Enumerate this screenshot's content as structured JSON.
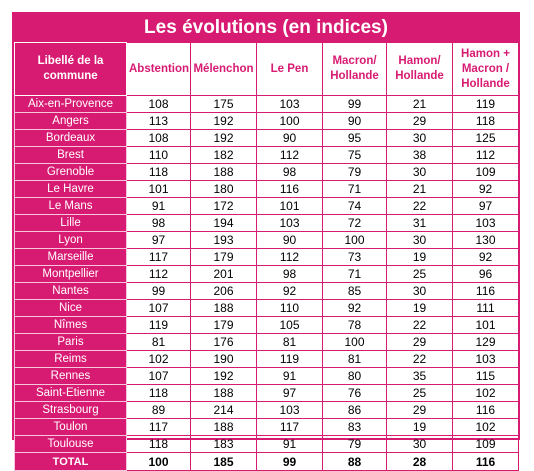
{
  "title": "Les évolutions (en indices)",
  "header": {
    "first_line1": "Libellé de la",
    "first_line2": "commune",
    "columns": [
      {
        "l1": "Abstention",
        "l2": "",
        "l3": ""
      },
      {
        "l1": "Mélenchon",
        "l2": "",
        "l3": ""
      },
      {
        "l1": "Le Pen",
        "l2": "",
        "l3": ""
      },
      {
        "l1": "Macron/",
        "l2": "Hollande",
        "l3": ""
      },
      {
        "l1": "Hamon/",
        "l2": "Hollande",
        "l3": ""
      },
      {
        "l1": "Hamon +",
        "l2": "Macron /",
        "l3": "Hollande"
      }
    ]
  },
  "rows": [
    {
      "name": "Aix-en-Provence",
      "values": [
        "108",
        "175",
        "103",
        "99",
        "21",
        "119"
      ]
    },
    {
      "name": "Angers",
      "values": [
        "113",
        "192",
        "100",
        "90",
        "29",
        "118"
      ]
    },
    {
      "name": "Bordeaux",
      "values": [
        "108",
        "192",
        "90",
        "95",
        "30",
        "125"
      ]
    },
    {
      "name": "Brest",
      "values": [
        "110",
        "182",
        "112",
        "75",
        "38",
        "112"
      ]
    },
    {
      "name": "Grenoble",
      "values": [
        "118",
        "188",
        "98",
        "79",
        "30",
        "109"
      ]
    },
    {
      "name": "Le Havre",
      "values": [
        "101",
        "180",
        "116",
        "71",
        "21",
        "92"
      ]
    },
    {
      "name": "Le Mans",
      "values": [
        "91",
        "172",
        "101",
        "74",
        "22",
        "97"
      ]
    },
    {
      "name": "Lille",
      "values": [
        "98",
        "194",
        "103",
        "72",
        "31",
        "103"
      ]
    },
    {
      "name": "Lyon",
      "values": [
        "97",
        "193",
        "90",
        "100",
        "30",
        "130"
      ]
    },
    {
      "name": "Marseille",
      "values": [
        "117",
        "179",
        "112",
        "73",
        "19",
        "92"
      ]
    },
    {
      "name": "Montpellier",
      "values": [
        "112",
        "201",
        "98",
        "71",
        "25",
        "96"
      ]
    },
    {
      "name": "Nantes",
      "values": [
        "99",
        "206",
        "92",
        "85",
        "30",
        "116"
      ]
    },
    {
      "name": "Nice",
      "values": [
        "107",
        "188",
        "110",
        "92",
        "19",
        "111"
      ]
    },
    {
      "name": "Nîmes",
      "values": [
        "119",
        "179",
        "105",
        "78",
        "22",
        "101"
      ]
    },
    {
      "name": "Paris",
      "values": [
        "81",
        "176",
        "81",
        "100",
        "29",
        "129"
      ]
    },
    {
      "name": "Reims",
      "values": [
        "102",
        "190",
        "119",
        "81",
        "22",
        "103"
      ]
    },
    {
      "name": "Rennes",
      "values": [
        "107",
        "192",
        "91",
        "80",
        "35",
        "115"
      ]
    },
    {
      "name": "Saint-Etienne",
      "values": [
        "118",
        "188",
        "97",
        "76",
        "25",
        "102"
      ]
    },
    {
      "name": "Strasbourg",
      "values": [
        "89",
        "214",
        "103",
        "86",
        "29",
        "116"
      ]
    },
    {
      "name": "Toulon",
      "values": [
        "117",
        "188",
        "117",
        "83",
        "19",
        "102"
      ]
    },
    {
      "name": "Toulouse",
      "values": [
        "118",
        "183",
        "91",
        "79",
        "30",
        "109"
      ]
    }
  ],
  "total": {
    "name": "TOTAL",
    "values": [
      "100",
      "185",
      "99",
      "88",
      "28",
      "116"
    ]
  }
}
